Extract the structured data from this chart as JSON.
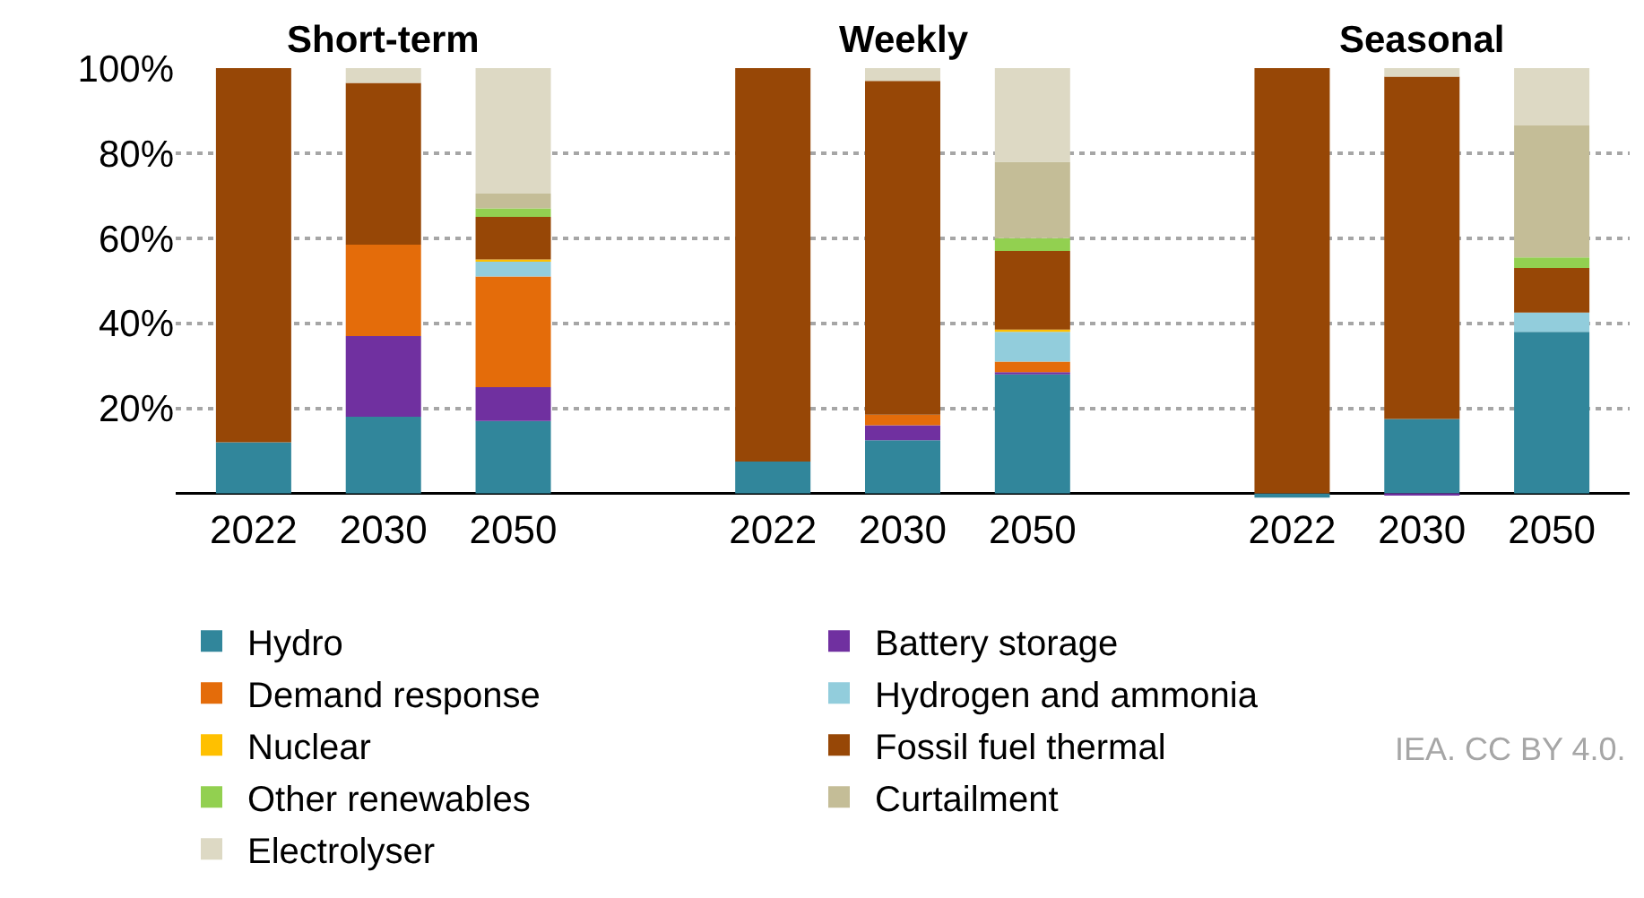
{
  "chart_data": {
    "type": "bar",
    "stacked": true,
    "categories": [
      "2022",
      "2030",
      "2050",
      null,
      "2022",
      "2030",
      "2050",
      null,
      "2022",
      "2030",
      "2050"
    ],
    "series": [
      {
        "name": "Hydro",
        "color": "#31869b",
        "values": [
          12,
          18,
          17,
          null,
          7.5,
          12.5,
          28,
          null,
          -1,
          17.5,
          38
        ]
      },
      {
        "name": "Battery storage",
        "color": "#7030a0",
        "values": [
          0,
          19,
          8,
          null,
          0,
          3.5,
          0.5,
          null,
          0,
          -0.5,
          0
        ]
      },
      {
        "name": "Demand response",
        "color": "#e46c0a",
        "values": [
          0,
          21.5,
          26,
          null,
          0,
          2.5,
          2.5,
          null,
          0,
          0,
          0
        ]
      },
      {
        "name": "Hydrogen and ammonia",
        "color": "#92cddc",
        "values": [
          0,
          0,
          3.5,
          null,
          0,
          0,
          7,
          null,
          0,
          0,
          4.5
        ]
      },
      {
        "name": "Nuclear",
        "color": "#ffc000",
        "values": [
          0,
          0,
          0.5,
          null,
          0,
          0,
          0.5,
          null,
          0,
          0,
          0
        ]
      },
      {
        "name": "Fossil fuel thermal",
        "color": "#974706",
        "values": [
          88,
          38,
          10,
          null,
          92.5,
          78.5,
          18.5,
          null,
          100,
          80.5,
          10.5
        ]
      },
      {
        "name": "Other renewables",
        "color": "#92d050",
        "values": [
          0,
          0,
          2,
          null,
          0,
          0,
          3,
          null,
          0,
          0,
          2.5
        ]
      },
      {
        "name": "Curtailment",
        "color": "#c4bd97",
        "values": [
          0,
          0,
          3.5,
          null,
          0,
          0,
          18,
          null,
          0,
          0,
          31
        ]
      },
      {
        "name": "Electrolyser",
        "color": "#ddd9c4",
        "values": [
          0,
          3.5,
          29.5,
          null,
          0,
          3,
          22,
          null,
          0,
          2,
          13.5
        ]
      }
    ],
    "ylim": [
      -2,
      100
    ],
    "yticks": [
      {
        "value": 20,
        "label": "20%"
      },
      {
        "value": 40,
        "label": "40%"
      },
      {
        "value": 60,
        "label": "60%"
      },
      {
        "value": 80,
        "label": "80%"
      },
      {
        "value": 100,
        "label": "100%"
      }
    ],
    "grid": "y",
    "legend": "bottom",
    "annotations": [
      "Short-term",
      "Weekly",
      "Seasonal",
      "IEA. CC BY 4.0."
    ]
  }
}
